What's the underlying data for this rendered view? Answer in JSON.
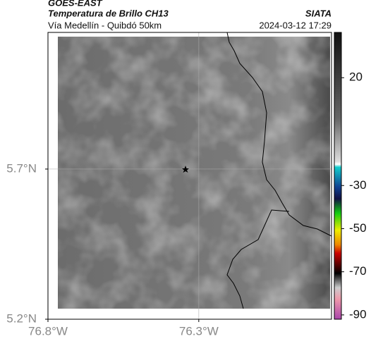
{
  "header": {
    "satellite": "GOES-EAST",
    "product": "Temperatura de Brillo CH13",
    "region": "Vía Medellín - Quibdó 50km",
    "source": "SIATA",
    "datetime": "2024-03-12 17:29"
  },
  "map": {
    "xlim": [
      -76.8,
      -75.86
    ],
    "ylim": [
      5.2,
      6.155
    ],
    "xticks": [
      {
        "value": -76.8,
        "label": "76.8°W"
      },
      {
        "value": -76.3,
        "label": "76.3°W"
      }
    ],
    "yticks": [
      {
        "value": 5.2,
        "label": "5.2°N"
      },
      {
        "value": 5.7,
        "label": "5.7°N"
      }
    ],
    "grid": true
  },
  "colorbar": {
    "lim": [
      -92,
      41
    ],
    "ticks": [
      20,
      -30,
      -50,
      -70,
      -90
    ]
  }
}
